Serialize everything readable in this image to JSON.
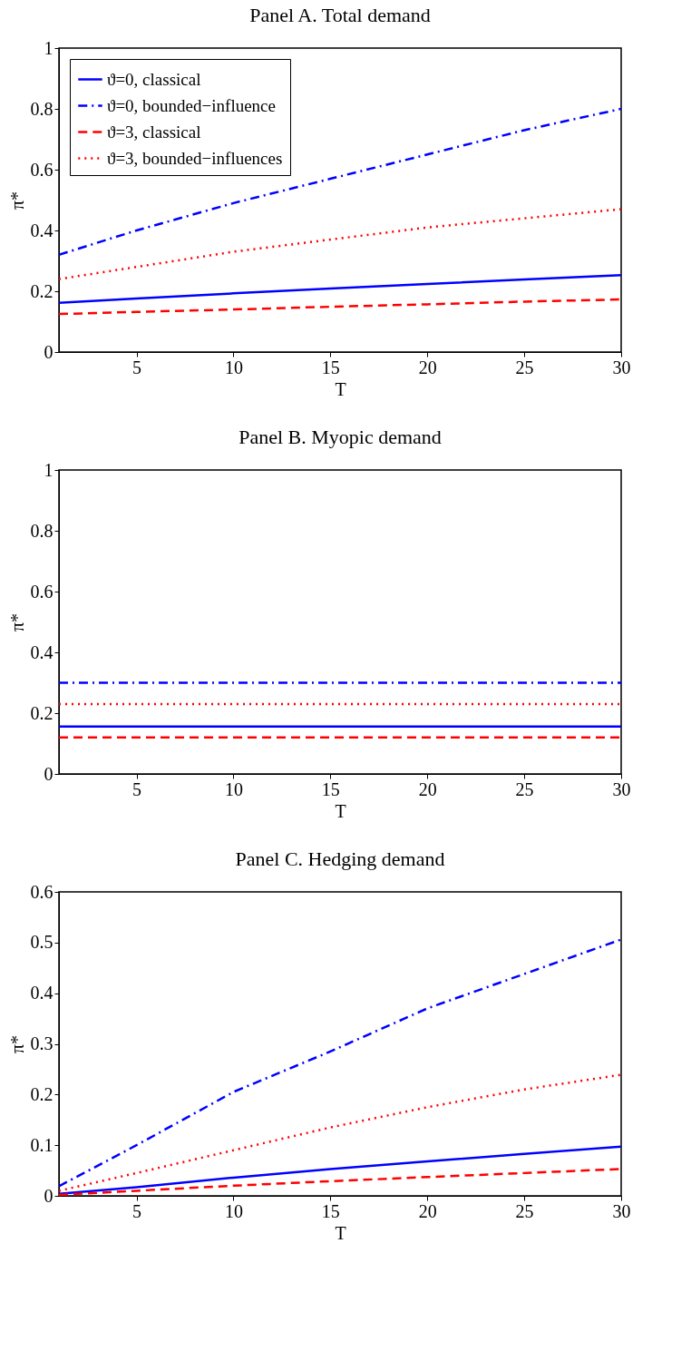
{
  "chart_data": [
    {
      "type": "line",
      "title": "Panel A. Total demand",
      "xlabel": "T",
      "ylabel": "π*",
      "x": [
        1,
        5,
        10,
        15,
        20,
        25,
        30
      ],
      "xlim": [
        1,
        30
      ],
      "xticks": [
        5,
        10,
        15,
        20,
        25,
        30
      ],
      "ylim": [
        0,
        1
      ],
      "yticks": [
        0,
        0.2,
        0.4,
        0.6,
        0.8,
        1
      ],
      "grid": false,
      "legend": "top left",
      "marker": "none",
      "series": [
        {
          "name": "ϑ=0, classical",
          "color": "#0000ff",
          "line_style": "solid",
          "values": [
            0.162,
            0.176,
            0.193,
            0.209,
            0.224,
            0.239,
            0.253
          ]
        },
        {
          "name": "ϑ=0, bounded−influence",
          "color": "#0000ff",
          "line_style": "dashdot",
          "values": [
            0.32,
            0.4,
            0.49,
            0.57,
            0.65,
            0.73,
            0.8
          ]
        },
        {
          "name": "ϑ=3, classical",
          "color": "#ff0000",
          "line_style": "dashed",
          "values": [
            0.125,
            0.132,
            0.14,
            0.149,
            0.157,
            0.166,
            0.173
          ]
        },
        {
          "name": "ϑ=3, bounded−influences",
          "color": "#ff0000",
          "line_style": "dotted",
          "values": [
            0.24,
            0.28,
            0.33,
            0.37,
            0.41,
            0.44,
            0.47
          ]
        }
      ]
    },
    {
      "type": "line",
      "title": "Panel B. Myopic demand",
      "xlabel": "T",
      "ylabel": "π*",
      "x": [
        1,
        30
      ],
      "xlim": [
        1,
        30
      ],
      "xticks": [
        5,
        10,
        15,
        20,
        25,
        30
      ],
      "ylim": [
        0,
        1
      ],
      "yticks": [
        0,
        0.2,
        0.4,
        0.6,
        0.8,
        1
      ],
      "grid": false,
      "legend": "top left",
      "marker": "none",
      "series": [
        {
          "name": "ϑ=0, classical",
          "color": "#0000ff",
          "line_style": "solid",
          "values": [
            0.156,
            0.156
          ]
        },
        {
          "name": "ϑ=0, bounded−influence",
          "color": "#0000ff",
          "line_style": "dashdot",
          "values": [
            0.3,
            0.3
          ]
        },
        {
          "name": "ϑ=3, classical",
          "color": "#ff0000",
          "line_style": "dashed",
          "values": [
            0.12,
            0.12
          ]
        },
        {
          "name": "ϑ=3, bounded−influences",
          "color": "#ff0000",
          "line_style": "dotted",
          "values": [
            0.23,
            0.23
          ]
        }
      ]
    },
    {
      "type": "line",
      "title": "Panel C. Hedging demand",
      "xlabel": "T",
      "ylabel": "π*",
      "x": [
        1,
        5,
        10,
        15,
        20,
        25,
        30
      ],
      "xlim": [
        1,
        30
      ],
      "xticks": [
        5,
        10,
        15,
        20,
        25,
        30
      ],
      "ylim": [
        0,
        0.6
      ],
      "yticks": [
        0,
        0.1,
        0.2,
        0.3,
        0.4,
        0.5,
        0.6
      ],
      "grid": false,
      "legend": "top left",
      "marker": "none",
      "series": [
        {
          "name": "ϑ=0, classical",
          "color": "#0000ff",
          "line_style": "solid",
          "values": [
            0.004,
            0.017,
            0.036,
            0.053,
            0.068,
            0.083,
            0.097
          ]
        },
        {
          "name": "ϑ=0, bounded−influence",
          "color": "#0000ff",
          "line_style": "dashdot",
          "values": [
            0.019,
            0.1,
            0.205,
            0.285,
            0.37,
            0.438,
            0.506
          ]
        },
        {
          "name": "ϑ=3, classical",
          "color": "#ff0000",
          "line_style": "dashed",
          "values": [
            0.002,
            0.01,
            0.02,
            0.029,
            0.037,
            0.045,
            0.053
          ]
        },
        {
          "name": "ϑ=3, bounded−influences",
          "color": "#ff0000",
          "line_style": "dotted",
          "values": [
            0.01,
            0.045,
            0.09,
            0.135,
            0.175,
            0.21,
            0.239
          ]
        }
      ]
    }
  ]
}
